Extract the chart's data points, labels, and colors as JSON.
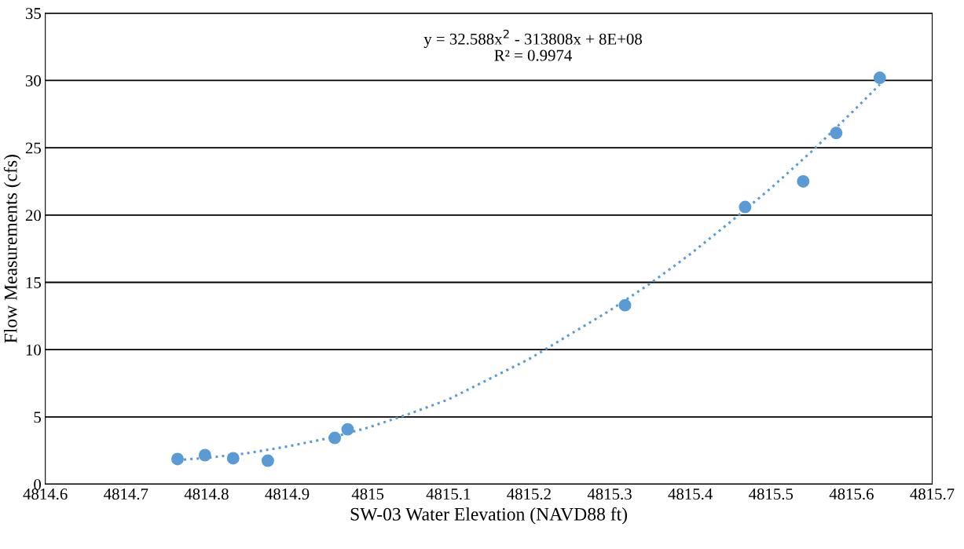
{
  "chart_data": {
    "type": "scatter",
    "xlabel": "SW-03 Water Elevation (NAVD88 ft)",
    "ylabel": "Flow Measurements (cfs)",
    "annotations": [
      "y = 32.588x$^{2}$ - 313808x + 8E+08",
      "R² = 0.9974"
    ],
    "series": [
      {
        "color": "#5b9bd5",
        "marker": "circle",
        "x": [
          4814.764,
          4814.798,
          4814.833,
          4814.876,
          4814.959,
          4814.975,
          4815.319,
          4815.468,
          4815.54,
          4815.581,
          4815.635
        ],
        "values": [
          1.87,
          2.16,
          1.93,
          1.75,
          3.44,
          4.08,
          13.3,
          20.6,
          22.5,
          26.1,
          30.2
        ]
      },
      {
        "type": "line",
        "color": "#5b9bd5",
        "line_style": "dotted",
        "x": [
          4814.764,
          4814.8,
          4814.85,
          4814.9,
          4814.95,
          4815.0,
          4815.05,
          4815.1,
          4815.15,
          4815.2,
          4815.25,
          4815.3,
          4815.35,
          4815.4,
          4815.45,
          4815.5,
          4815.55,
          4815.6,
          4815.635
        ],
        "values": [
          1.8,
          1.95,
          2.3,
          2.8,
          3.4,
          4.2,
          5.2,
          6.3,
          7.8,
          9.3,
          11.1,
          12.9,
          14.9,
          17.1,
          19.5,
          22.0,
          24.7,
          27.6,
          29.7
        ]
      }
    ],
    "xlim": [
      4814.6,
      4815.7
    ],
    "xticks": [
      4814.6,
      4814.7,
      4814.8,
      4814.9,
      4815,
      4815.1,
      4815.2,
      4815.3,
      4815.4,
      4815.5,
      4815.6,
      4815.7
    ],
    "ylim": [
      0,
      35
    ],
    "yticks": [
      0,
      5,
      10,
      15,
      20,
      25,
      30,
      35
    ],
    "grid": "y",
    "legend": false
  }
}
